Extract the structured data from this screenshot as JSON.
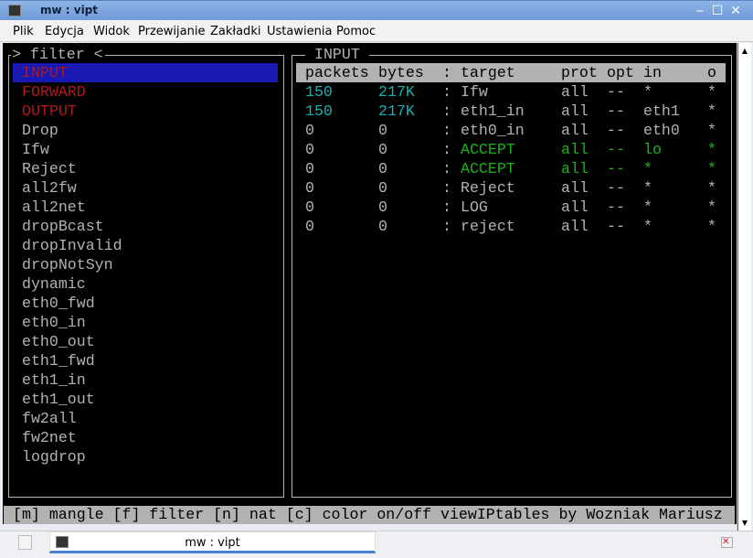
{
  "window": {
    "title": "mw : vipt",
    "min": "‒",
    "max": "☐",
    "close": "✕"
  },
  "menu": [
    "Plik",
    "Edycja",
    "Widok",
    "Przewijanie",
    "Zakładki",
    "Ustawienia",
    "Pomoc"
  ],
  "left": {
    "title": "> filter <",
    "items": [
      {
        "label": "INPUT",
        "color": "red",
        "selected": true
      },
      {
        "label": "FORWARD",
        "color": "red"
      },
      {
        "label": "OUTPUT",
        "color": "red"
      },
      {
        "label": "Drop"
      },
      {
        "label": "Ifw"
      },
      {
        "label": "Reject"
      },
      {
        "label": "all2fw"
      },
      {
        "label": "all2net"
      },
      {
        "label": "dropBcast"
      },
      {
        "label": "dropInvalid"
      },
      {
        "label": "dropNotSyn"
      },
      {
        "label": "dynamic"
      },
      {
        "label": "eth0_fwd"
      },
      {
        "label": "eth0_in"
      },
      {
        "label": "eth0_out"
      },
      {
        "label": "eth1_fwd"
      },
      {
        "label": "eth1_in"
      },
      {
        "label": "eth1_out"
      },
      {
        "label": "fw2all"
      },
      {
        "label": "fw2net"
      },
      {
        "label": "logdrop"
      }
    ]
  },
  "right": {
    "title": "INPUT",
    "columns": [
      "packets",
      "bytes",
      ":",
      "target",
      "prot",
      "opt",
      "in",
      "o"
    ],
    "rows": [
      {
        "cells": [
          "150",
          "217K",
          ":",
          "Ifw",
          "all",
          "--",
          "*",
          "*"
        ],
        "numcolor": "cyan"
      },
      {
        "cells": [
          "150",
          "217K",
          ":",
          "eth1_in",
          "all",
          "--",
          "eth1",
          "*"
        ],
        "numcolor": "cyan"
      },
      {
        "cells": [
          "0",
          "0",
          ":",
          "eth0_in",
          "all",
          "--",
          "eth0",
          "*"
        ]
      },
      {
        "cells": [
          "0",
          "0",
          ":",
          "ACCEPT",
          "all",
          "--",
          "lo",
          "*"
        ],
        "restcolor": "green"
      },
      {
        "cells": [
          "0",
          "0",
          ":",
          "ACCEPT",
          "all",
          "--",
          "*",
          "*"
        ],
        "restcolor": "green"
      },
      {
        "cells": [
          "0",
          "0",
          ":",
          "Reject",
          "all",
          "--",
          "*",
          "*"
        ]
      },
      {
        "cells": [
          "0",
          "0",
          ":",
          "LOG",
          "all",
          "--",
          "*",
          "*"
        ]
      },
      {
        "cells": [
          "0",
          "0",
          ":",
          "reject",
          "all",
          "--",
          "*",
          "*"
        ]
      }
    ]
  },
  "status": "[m] mangle [f] filter [n] nat [c] color on/off viewIPtables by Wozniak Mariusz",
  "taskbar": {
    "task": "mw : vipt"
  },
  "colors": {
    "red": "#b21818",
    "cyan": "#18b2b2",
    "green": "#18b218",
    "selection": "#1818b2",
    "text": "#b2b2b2"
  }
}
